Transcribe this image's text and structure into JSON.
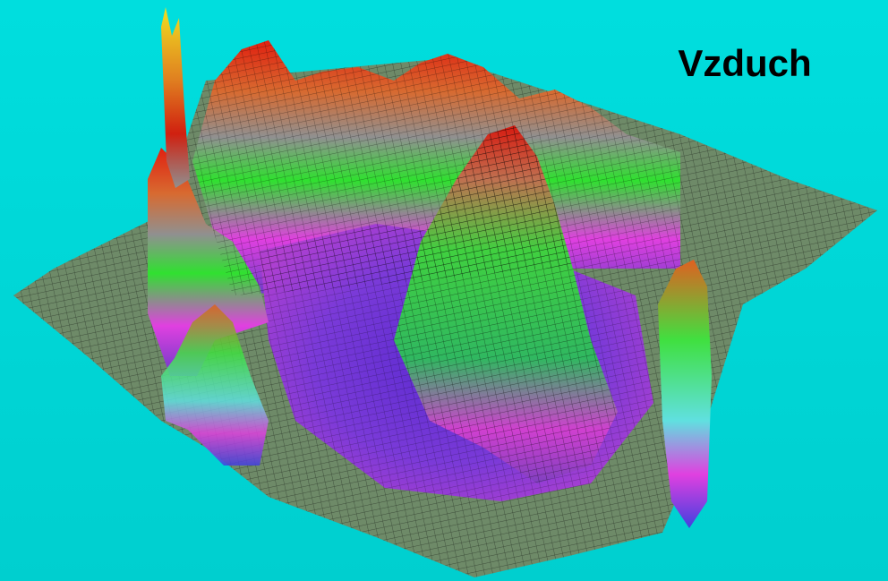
{
  "title": "Vzduch"
}
